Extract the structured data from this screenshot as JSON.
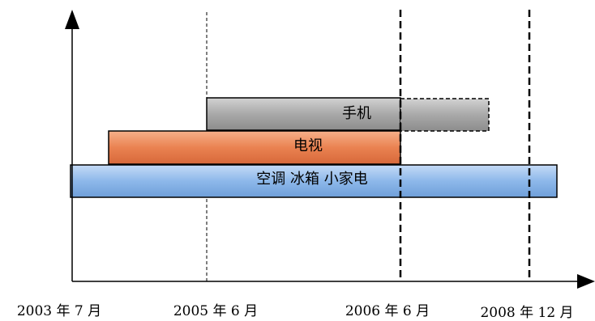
{
  "timeline": {
    "date_labels": [
      "2003 年 7 月",
      "2005 年 6 月",
      "2006 年 6 月",
      "2008 年 12 月"
    ],
    "bars": {
      "phones": {
        "label": "手机",
        "fill_color": "#a9a9a9",
        "extension_fill_color": "#a9a9a9"
      },
      "tv": {
        "label": "电视",
        "fill_color": "#ea8251"
      },
      "appliances": {
        "label": "空调  冰箱  小家电",
        "fill_color": "#8db8ea"
      }
    },
    "axis_color": "#000000"
  }
}
